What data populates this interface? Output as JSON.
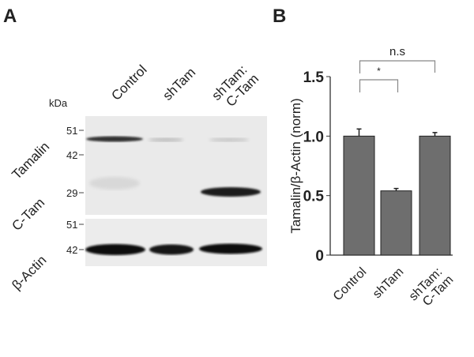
{
  "panel_a": {
    "letter": "A",
    "kda_label": "kDa",
    "lanes": [
      "Control",
      "shTam",
      "shTam:",
      "C-Tam"
    ],
    "row_labels": {
      "tamalin": "Tamalin",
      "ctam": "C-Tam",
      "actin": "β-Actin"
    },
    "markers_top": [
      "51",
      "42",
      "29"
    ],
    "markers_bottom": [
      "51",
      "42"
    ]
  },
  "chart_data": {
    "type": "bar",
    "panel_letter": "B",
    "categories": [
      "Control",
      "shTam",
      "shTam:\nC-Tam"
    ],
    "category_lines": [
      [
        "Control"
      ],
      [
        "shTam"
      ],
      [
        "shTam:",
        "C-Tam"
      ]
    ],
    "values": [
      1.0,
      0.54,
      1.0
    ],
    "errors": [
      0.06,
      0.02,
      0.03
    ],
    "ylabel": "Tamalin/β-Actin (norm)",
    "xlabel": "",
    "ylim": [
      0,
      1.5
    ],
    "yticks": [
      "0",
      "0.5",
      "1.0",
      "1.5"
    ],
    "grid": false,
    "bar_color": "#6e6e6e",
    "annotations": [
      {
        "from": "Control",
        "to": "shTam",
        "label": "*"
      },
      {
        "from": "Control",
        "to": "shTam:\nC-Tam",
        "label": "n.s"
      }
    ]
  }
}
